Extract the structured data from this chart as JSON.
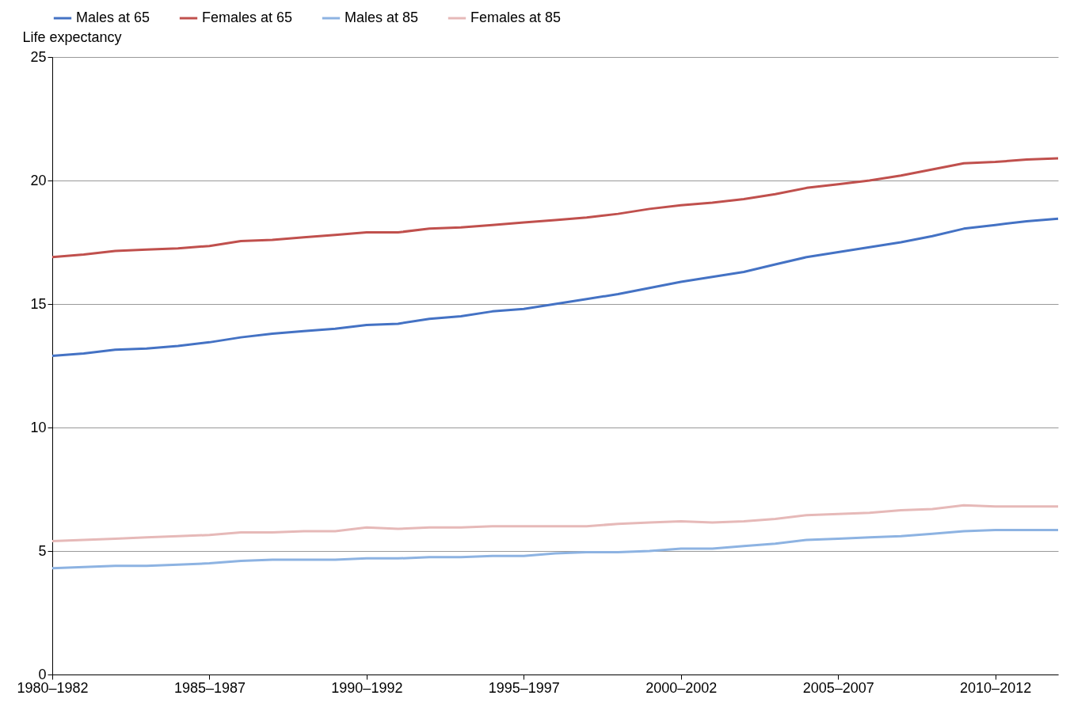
{
  "chart_data": {
    "type": "line",
    "ylabel": "Life expectancy",
    "categories": [
      "1980–1982",
      null,
      null,
      null,
      null,
      "1985–1987",
      null,
      null,
      null,
      null,
      "1990–1992",
      null,
      null,
      null,
      null,
      "1995–1997",
      null,
      null,
      null,
      null,
      "2000–2002",
      null,
      null,
      null,
      null,
      "2005–2007",
      null,
      null,
      null,
      null,
      "2010–2012",
      null,
      null
    ],
    "series": [
      {
        "name": "Males at 65",
        "color": "#4472c4",
        "values": [
          12.9,
          13.0,
          13.15,
          13.2,
          13.3,
          13.45,
          13.65,
          13.8,
          13.9,
          14.0,
          14.15,
          14.2,
          14.4,
          14.5,
          14.7,
          14.8,
          15.0,
          15.2,
          15.4,
          15.65,
          15.9,
          16.1,
          16.3,
          16.6,
          16.9,
          17.1,
          17.3,
          17.5,
          17.75,
          18.05,
          18.2,
          18.35,
          18.45
        ]
      },
      {
        "name": "Females at 65",
        "color": "#c0504d",
        "values": [
          16.9,
          17.0,
          17.15,
          17.2,
          17.25,
          17.35,
          17.55,
          17.6,
          17.7,
          17.8,
          17.9,
          17.9,
          18.05,
          18.1,
          18.2,
          18.3,
          18.4,
          18.5,
          18.65,
          18.85,
          19.0,
          19.1,
          19.25,
          19.45,
          19.7,
          19.85,
          20.0,
          20.2,
          20.45,
          20.7,
          20.75,
          20.85,
          20.9
        ]
      },
      {
        "name": "Males at 85",
        "color": "#8db3e2",
        "values": [
          4.3,
          4.35,
          4.4,
          4.4,
          4.45,
          4.5,
          4.6,
          4.65,
          4.65,
          4.65,
          4.7,
          4.7,
          4.75,
          4.75,
          4.8,
          4.8,
          4.9,
          4.95,
          4.95,
          5.0,
          5.1,
          5.1,
          5.2,
          5.3,
          5.45,
          5.5,
          5.55,
          5.6,
          5.7,
          5.8,
          5.85,
          5.85,
          5.85
        ]
      },
      {
        "name": "Females at 85",
        "color": "#e6b9b8",
        "values": [
          5.4,
          5.45,
          5.5,
          5.55,
          5.6,
          5.65,
          5.75,
          5.75,
          5.8,
          5.8,
          5.95,
          5.9,
          5.95,
          5.95,
          6.0,
          6.0,
          6.0,
          6.0,
          6.1,
          6.15,
          6.2,
          6.15,
          6.2,
          6.3,
          6.45,
          6.5,
          6.55,
          6.65,
          6.7,
          6.85,
          6.8,
          6.8,
          6.8
        ]
      }
    ],
    "ylim": [
      0,
      25
    ],
    "yticks": [
      0,
      5,
      10,
      15,
      20,
      25
    ],
    "grid": "y",
    "legend": "top",
    "marker": "none",
    "line_style": "solid"
  }
}
